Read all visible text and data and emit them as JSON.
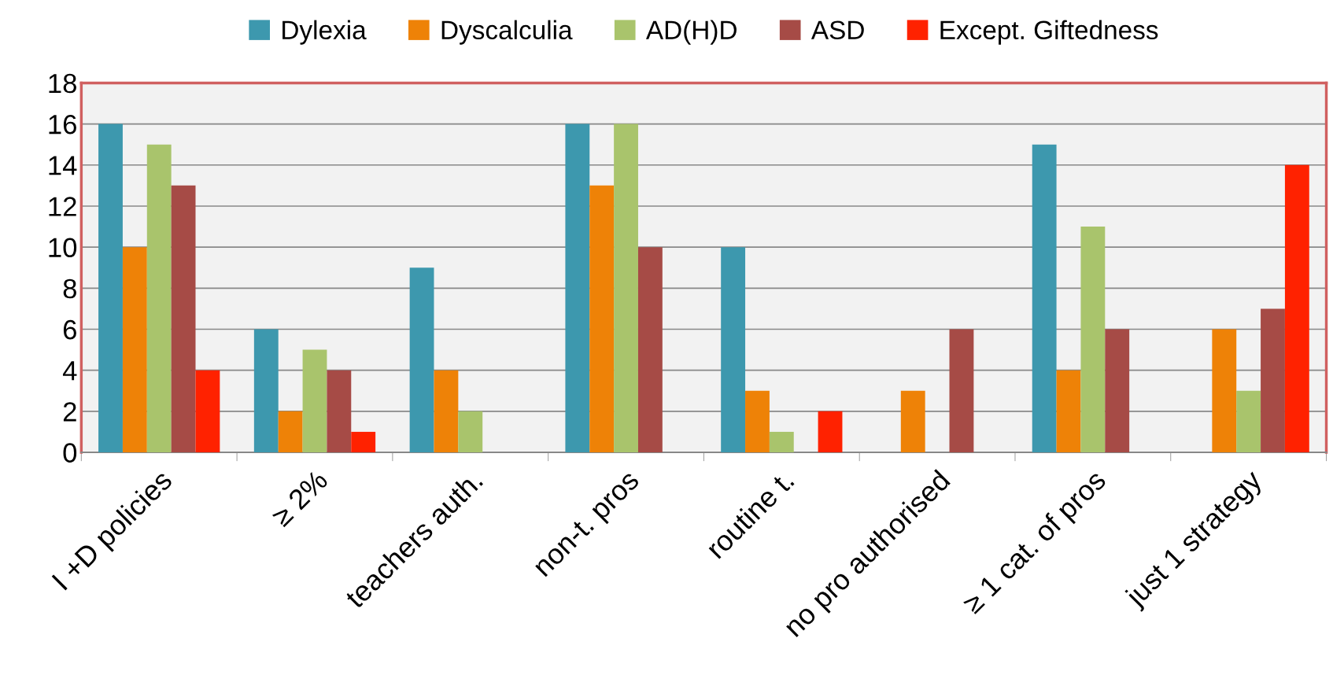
{
  "chart_data": {
    "type": "bar",
    "categories": [
      "I +D policies",
      "≥ 2%",
      "teachers auth.",
      "non-t. pros",
      "routine t.",
      "no pro authorised",
      "≥ 1 cat. of pros",
      "just 1 strategy"
    ],
    "series": [
      {
        "name": "Dylexia",
        "color": "#3d98ae",
        "values": [
          16,
          6,
          9,
          16,
          10,
          0,
          15,
          0
        ]
      },
      {
        "name": "Dyscalculia",
        "color": "#ee8207",
        "values": [
          10,
          2,
          4,
          13,
          3,
          3,
          4,
          6
        ]
      },
      {
        "name": "AD(H)D",
        "color": "#a9c46c",
        "values": [
          15,
          5,
          2,
          16,
          1,
          0,
          11,
          3
        ]
      },
      {
        "name": "ASD",
        "color": "#a64b46",
        "values": [
          13,
          4,
          0,
          10,
          0,
          6,
          6,
          7
        ]
      },
      {
        "name": "Except. Giftedness",
        "color": "#ff2200",
        "values": [
          4,
          1,
          0,
          0,
          2,
          0,
          0,
          14
        ]
      }
    ],
    "ylim": [
      0,
      18
    ],
    "yticks": [
      0,
      2,
      4,
      6,
      8,
      10,
      12,
      14,
      16,
      18
    ],
    "grid": "y",
    "legend": "top"
  }
}
